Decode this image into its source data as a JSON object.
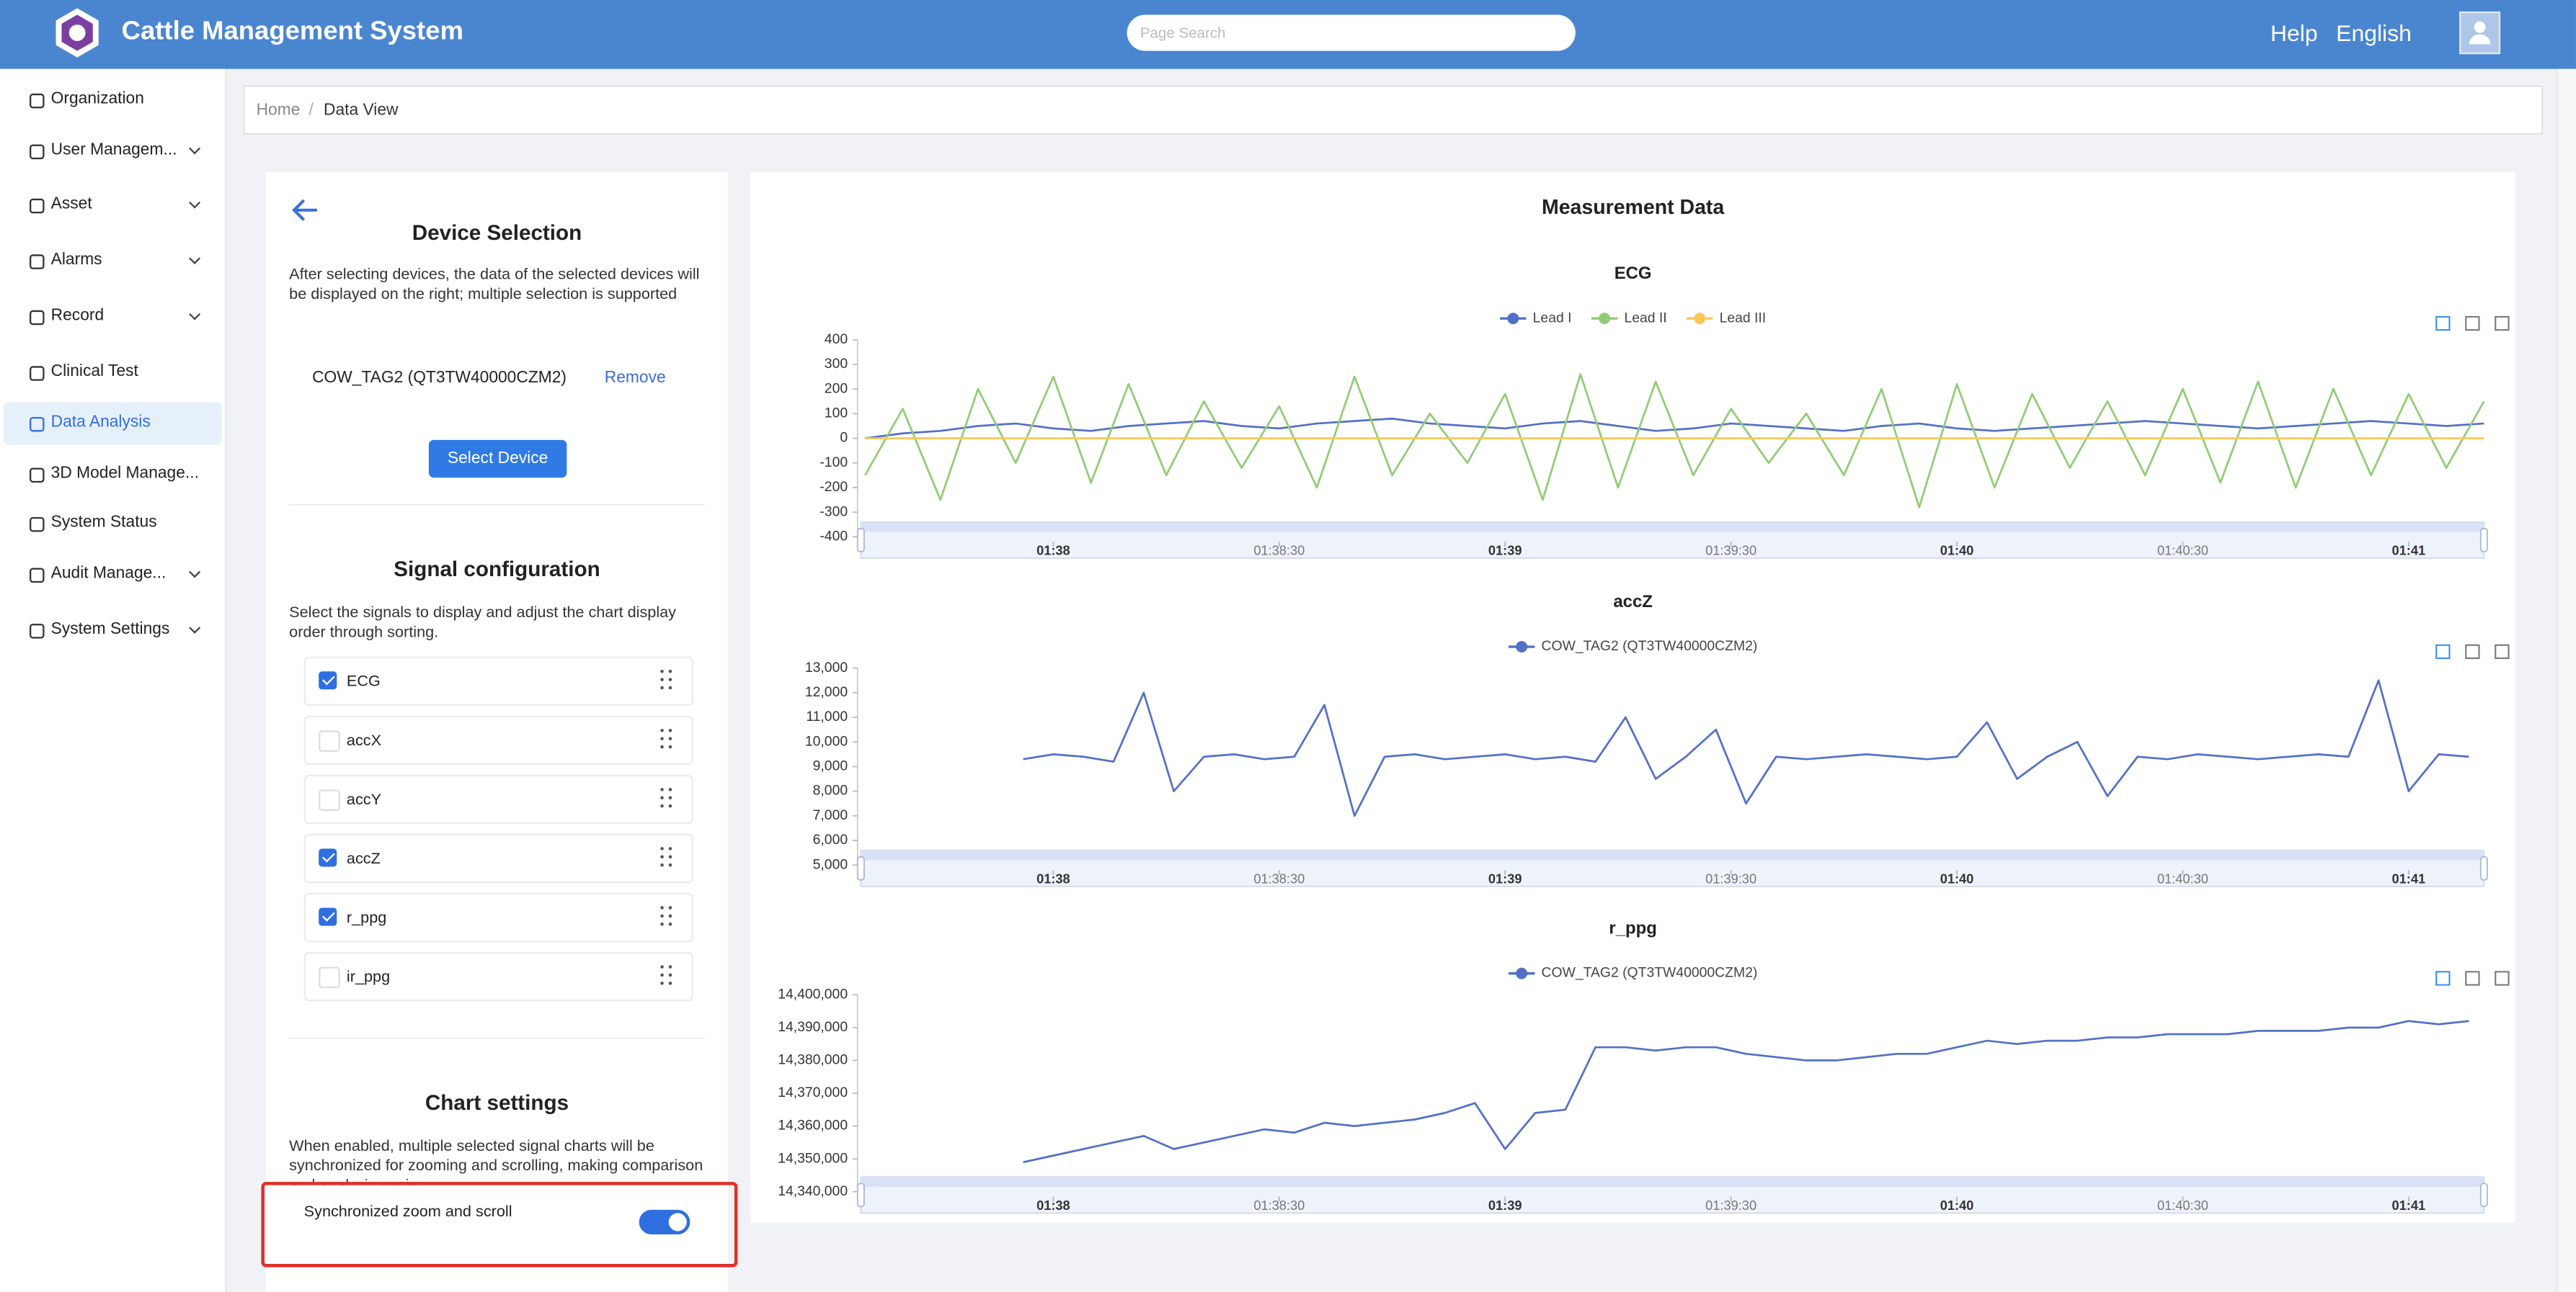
{
  "header": {
    "title": "Cattle Management System",
    "search_placeholder": "Page Search",
    "links": [
      "Help",
      "English"
    ]
  },
  "sidebar": {
    "active": 6,
    "items": [
      {
        "label": "Organization",
        "expandable": false
      },
      {
        "label": "User Managem...",
        "expandable": true
      },
      {
        "label": "Asset",
        "expandable": true
      },
      {
        "label": "Alarms",
        "expandable": true
      },
      {
        "label": "Record",
        "expandable": true
      },
      {
        "label": "Clinical Test",
        "expandable": false
      },
      {
        "label": "Data Analysis",
        "expandable": false
      },
      {
        "label": "3D Model Manage...",
        "expandable": false
      },
      {
        "label": "System Status",
        "expandable": false
      },
      {
        "label": "Audit Manage...",
        "expandable": true
      },
      {
        "label": "System Settings",
        "expandable": true
      }
    ]
  },
  "breadcrumb": [
    "Home",
    "Data View"
  ],
  "device_panel": {
    "title": "Device Selection",
    "description": "After selecting devices, the data of the selected devices will be displayed on the right; multiple selection is supported",
    "device": "COW_TAG2 (QT3TW40000CZM2)",
    "remove": "Remove",
    "button": "Select Device"
  },
  "signals": {
    "title": "Signal configuration",
    "description": "Select the signals to display and adjust the chart display order through sorting.",
    "items": [
      {
        "name": "ECG",
        "checked": true
      },
      {
        "name": "accX",
        "checked": false
      },
      {
        "name": "accY",
        "checked": false
      },
      {
        "name": "accZ",
        "checked": true
      },
      {
        "name": "r_ppg",
        "checked": true
      },
      {
        "name": "ir_ppg",
        "checked": false
      }
    ]
  },
  "chart_settings": {
    "title": "Chart settings",
    "description": "When enabled, multiple selected signal charts will be synchronized for zooming and scrolling, making comparison and analysis easier.",
    "toggle_label": "Synchronized zoom and scroll",
    "enabled": true
  },
  "measurement": {
    "title": "Measurement Data",
    "charts": [
      {
        "type": "line",
        "title": "ECG",
        "x": [
          5855,
          5860,
          5865,
          5870,
          5875,
          5880,
          5885,
          5890,
          5895,
          5900,
          5905,
          5910,
          5915,
          5920,
          5925,
          5930,
          5935,
          5940,
          5945,
          5950,
          5955,
          5960,
          5965,
          5970,
          5975,
          5980,
          5985,
          5990,
          5995,
          6000,
          6005,
          6010,
          6015,
          6020,
          6025,
          6030,
          6035,
          6040,
          6045,
          6050,
          6055,
          6060,
          6065,
          6070
        ],
        "series": [
          {
            "name": "Lead I",
            "color": "#5470c6",
            "values": [
              0,
              20,
              30,
              50,
              60,
              40,
              30,
              50,
              60,
              70,
              50,
              40,
              60,
              70,
              80,
              60,
              50,
              40,
              60,
              70,
              50,
              30,
              40,
              60,
              50,
              40,
              30,
              50,
              60,
              40,
              30,
              40,
              50,
              60,
              70,
              60,
              50,
              40,
              50,
              60,
              70,
              60,
              50,
              60
            ]
          },
          {
            "name": "Lead II",
            "color": "#91cc75",
            "values": [
              -150,
              120,
              -250,
              200,
              -100,
              250,
              -180,
              220,
              -150,
              150,
              -120,
              130,
              -200,
              250,
              -150,
              100,
              -100,
              180,
              -250,
              260,
              -200,
              230,
              -150,
              120,
              -100,
              100,
              -150,
              200,
              -280,
              220,
              -200,
              180,
              -120,
              150,
              -150,
              200,
              -180,
              230,
              -200,
              200,
              -150,
              180,
              -120,
              150
            ]
          },
          {
            "name": "Lead III",
            "color": "#fac858",
            "values": [
              0,
              0,
              0,
              0,
              0,
              0,
              0,
              0,
              0,
              0,
              0,
              0,
              0,
              0,
              0,
              0,
              0,
              0,
              0,
              0,
              0,
              0,
              0,
              0,
              0,
              0,
              0,
              0,
              0,
              0,
              0,
              0,
              0,
              0,
              0,
              0,
              0,
              0,
              0,
              0,
              0,
              0,
              0,
              0
            ]
          }
        ],
        "xlim": [
          5854,
          6070
        ],
        "xticks": [
          {
            "value": 5880,
            "label": "01:38"
          },
          {
            "value": 5910,
            "label": "01:38:30"
          },
          {
            "value": 5940,
            "label": "01:39"
          },
          {
            "value": 5970,
            "label": "01:39:30"
          },
          {
            "value": 6000,
            "label": "01:40"
          },
          {
            "value": 6030,
            "label": "01:40:30"
          },
          {
            "value": 6060,
            "label": "01:41"
          }
        ],
        "ylim": [
          -400,
          400
        ],
        "yticks": [
          -400,
          -300,
          -200,
          -100,
          0,
          100,
          200,
          300,
          400
        ]
      },
      {
        "type": "line",
        "title": "accZ",
        "x": [
          5876,
          5880,
          5884,
          5888,
          5892,
          5896,
          5900,
          5904,
          5908,
          5912,
          5916,
          5920,
          5924,
          5928,
          5932,
          5936,
          5940,
          5944,
          5948,
          5952,
          5956,
          5960,
          5964,
          5968,
          5972,
          5976,
          5980,
          5984,
          5988,
          5992,
          5996,
          6000,
          6004,
          6008,
          6012,
          6016,
          6020,
          6024,
          6028,
          6032,
          6036,
          6040,
          6044,
          6048,
          6052,
          6056,
          6060,
          6064,
          6068
        ],
        "series": [
          {
            "name": "COW_TAG2 (QT3TW40000CZM2)",
            "color": "#5470c6",
            "values": [
              9300,
              9500,
              9400,
              9200,
              12000,
              8000,
              9400,
              9500,
              9300,
              9400,
              11500,
              7000,
              9400,
              9500,
              9300,
              9400,
              9500,
              9300,
              9400,
              9200,
              11000,
              8500,
              9400,
              10500,
              7500,
              9400,
              9300,
              9400,
              9500,
              9400,
              9300,
              9400,
              10800,
              8500,
              9400,
              10000,
              7800,
              9400,
              9300,
              9500,
              9400,
              9300,
              9400,
              9500,
              9400,
              12500,
              8000,
              9500,
              9400
            ]
          }
        ],
        "xlim": [
          5854,
          6070
        ],
        "xticks": [
          {
            "value": 5880,
            "label": "01:38"
          },
          {
            "value": 5910,
            "label": "01:38:30"
          },
          {
            "value": 5940,
            "label": "01:39"
          },
          {
            "value": 5970,
            "label": "01:39:30"
          },
          {
            "value": 6000,
            "label": "01:40"
          },
          {
            "value": 6030,
            "label": "01:40:30"
          },
          {
            "value": 6060,
            "label": "01:41"
          }
        ],
        "ylim": [
          5000,
          13000
        ],
        "yticks": [
          {
            "value": 5000,
            "label": "5,000"
          },
          {
            "value": 6000,
            "label": "6,000"
          },
          {
            "value": 7000,
            "label": "7,000"
          },
          {
            "value": 8000,
            "label": "8,000"
          },
          {
            "value": 9000,
            "label": "9,000"
          },
          {
            "value": 10000,
            "label": "10,000"
          },
          {
            "value": 11000,
            "label": "11,000"
          },
          {
            "value": 12000,
            "label": "12,000"
          },
          {
            "value": 13000,
            "label": "13,000"
          }
        ]
      },
      {
        "type": "line",
        "title": "r_ppg",
        "x": [
          5876,
          5880,
          5884,
          5888,
          5892,
          5896,
          5900,
          5904,
          5908,
          5912,
          5916,
          5920,
          5924,
          5928,
          5932,
          5936,
          5940,
          5944,
          5948,
          5952,
          5956,
          5960,
          5964,
          5968,
          5972,
          5976,
          5980,
          5984,
          5988,
          5992,
          5996,
          6000,
          6004,
          6008,
          6012,
          6016,
          6020,
          6024,
          6028,
          6032,
          6036,
          6040,
          6044,
          6048,
          6052,
          6056,
          6060,
          6064,
          6068
        ],
        "series": [
          {
            "name": "COW_TAG2 (QT3TW40000CZM2)",
            "color": "#5470c6",
            "values": [
              14349000,
              14351000,
              14353000,
              14355000,
              14357000,
              14353000,
              14355000,
              14357000,
              14359000,
              14358000,
              14361000,
              14360000,
              14361000,
              14362000,
              14364000,
              14367000,
              14353000,
              14364000,
              14365000,
              14384000,
              14384000,
              14383000,
              14384000,
              14384000,
              14382000,
              14381000,
              14380000,
              14380000,
              14381000,
              14382000,
              14382000,
              14384000,
              14386000,
              14385000,
              14386000,
              14386000,
              14387000,
              14387000,
              14388000,
              14388000,
              14388000,
              14389000,
              14389000,
              14389000,
              14390000,
              14390000,
              14392000,
              14391000,
              14392000
            ]
          }
        ],
        "xlim": [
          5854,
          6070
        ],
        "xticks": [
          {
            "value": 5880,
            "label": "01:38"
          },
          {
            "value": 5910,
            "label": "01:38:30"
          },
          {
            "value": 5940,
            "label": "01:39"
          },
          {
            "value": 5970,
            "label": "01:39:30"
          },
          {
            "value": 6000,
            "label": "01:40"
          },
          {
            "value": 6030,
            "label": "01:40:30"
          },
          {
            "value": 6060,
            "label": "01:41"
          }
        ],
        "ylim": [
          14340000,
          14400000
        ],
        "yticks": [
          {
            "value": 14340000,
            "label": "14,340,000"
          },
          {
            "value": 14350000,
            "label": "14,350,000"
          },
          {
            "value": 14360000,
            "label": "14,360,000"
          },
          {
            "value": 14370000,
            "label": "14,370,000"
          },
          {
            "value": 14380000,
            "label": "14,380,000"
          },
          {
            "value": 14390000,
            "label": "14,390,000"
          },
          {
            "value": 14400000,
            "label": "14,400,000"
          }
        ]
      }
    ]
  }
}
